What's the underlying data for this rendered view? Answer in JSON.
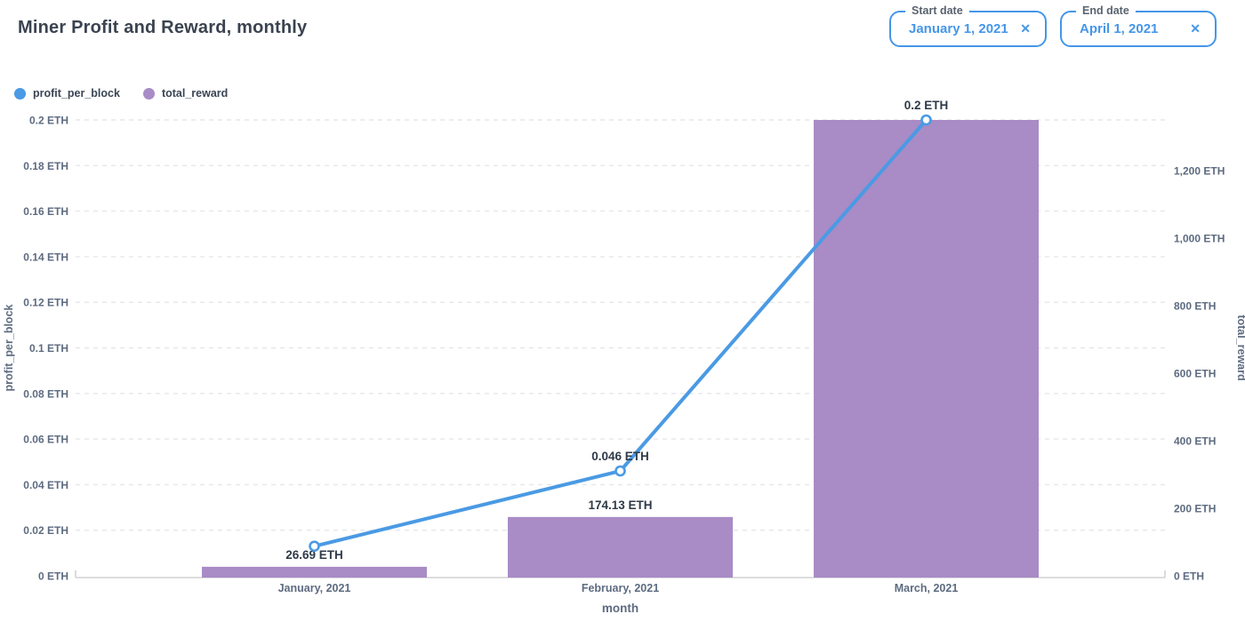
{
  "header": {
    "title": "Miner Profit and Reward, monthly"
  },
  "filters": {
    "start": {
      "label": "Start date",
      "value": "January 1, 2021",
      "clear_icon": "✕"
    },
    "end": {
      "label": "End date",
      "value": "April 1, 2021",
      "clear_icon": "✕"
    }
  },
  "legend": [
    {
      "label": "profit_per_block",
      "color": "#4a9ae4"
    },
    {
      "label": "total_reward",
      "color": "#a98bc6"
    }
  ],
  "chart_data": {
    "type": "combo",
    "title": "Miner Profit and Reward, monthly",
    "categories": [
      "January, 2021",
      "February, 2021",
      "March, 2021"
    ],
    "xlabel": "month",
    "grid": "dashed-horizontal",
    "legend_position": "top-left",
    "series": [
      {
        "name": "profit_per_block",
        "type": "line",
        "axis": "left",
        "color": "#4a9ae4",
        "values": [
          0.013,
          0.046,
          0.2
        ],
        "point_labels": [
          "",
          "0.046 ETH",
          "0.2 ETH"
        ]
      },
      {
        "name": "total_reward",
        "type": "bar",
        "axis": "right",
        "color": "#a98bc6",
        "values": [
          26.69,
          174.13,
          1350
        ],
        "point_labels": [
          "26.69 ETH",
          "174.13 ETH",
          ""
        ]
      }
    ],
    "left_axis": {
      "title": "profit_per_block",
      "min": 0,
      "max": 0.2,
      "tick_values": [
        0.2,
        0.18,
        0.16,
        0.14,
        0.12,
        0.1,
        0.08,
        0.06,
        0.04,
        0.02,
        0
      ],
      "tick_labels": [
        "0.2 ETH",
        "0.18 ETH",
        "0.16 ETH",
        "0.14 ETH",
        "0.12 ETH",
        "0.1 ETH",
        "0.08 ETH",
        "0.06 ETH",
        "0.04 ETH",
        "0.02 ETH",
        "0 ETH"
      ]
    },
    "right_axis": {
      "title": "total_reward",
      "min": 0,
      "max": 1350,
      "tick_values": [
        1200,
        1000,
        800,
        600,
        400,
        200,
        0
      ],
      "tick_labels": [
        "1,200 ETH",
        "1,000 ETH",
        "800 ETH",
        "600 ETH",
        "400 ETH",
        "200 ETH",
        "0 ETH"
      ]
    },
    "theme": {
      "accent_blue": "#4596e8",
      "title_color": "#3b4350",
      "axis_text_color": "#5d6b80",
      "grid_color": "#e7e7e9",
      "baseline_color": "#d2d2d2",
      "data_label_color": "#2e3a48",
      "background": "#ffffff"
    }
  }
}
